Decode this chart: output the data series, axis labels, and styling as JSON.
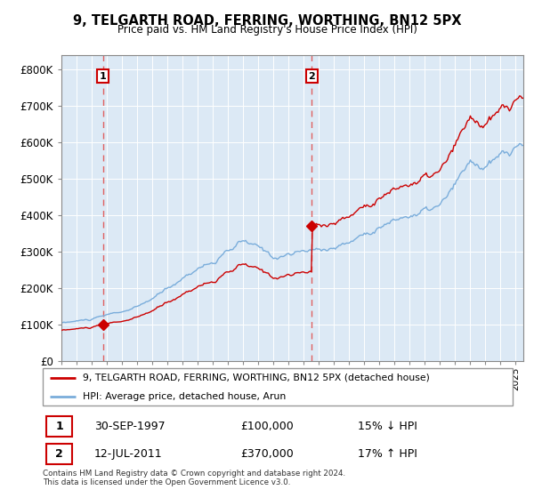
{
  "title": "9, TELGARTH ROAD, FERRING, WORTHING, BN12 5PX",
  "subtitle": "Price paid vs. HM Land Registry's House Price Index (HPI)",
  "ylabel_ticks": [
    "£0",
    "£100K",
    "£200K",
    "£300K",
    "£400K",
    "£500K",
    "£600K",
    "£700K",
    "£800K"
  ],
  "ytick_values": [
    0,
    100000,
    200000,
    300000,
    400000,
    500000,
    600000,
    700000,
    800000
  ],
  "ylim": [
    0,
    840000
  ],
  "xlim_start": 1995.0,
  "xlim_end": 2025.5,
  "transaction1": {
    "date_x": 1997.75,
    "price": 100000,
    "label": "1",
    "text": "30-SEP-1997",
    "amount": "£100,000",
    "pct": "15% ↓ HPI"
  },
  "transaction2": {
    "date_x": 2011.54,
    "price": 370000,
    "label": "2",
    "text": "12-JUL-2011",
    "amount": "£370,000",
    "pct": "17% ↑ HPI"
  },
  "legend1": "9, TELGARTH ROAD, FERRING, WORTHING, BN12 5PX (detached house)",
  "legend2": "HPI: Average price, detached house, Arun",
  "footnote": "Contains HM Land Registry data © Crown copyright and database right 2024.\nThis data is licensed under the Open Government Licence v3.0.",
  "line_color_property": "#cc0000",
  "line_color_hpi": "#7aaddb",
  "plot_bg_color": "#dce9f5",
  "marker_color": "#cc0000",
  "dashed_color": "#e06060"
}
